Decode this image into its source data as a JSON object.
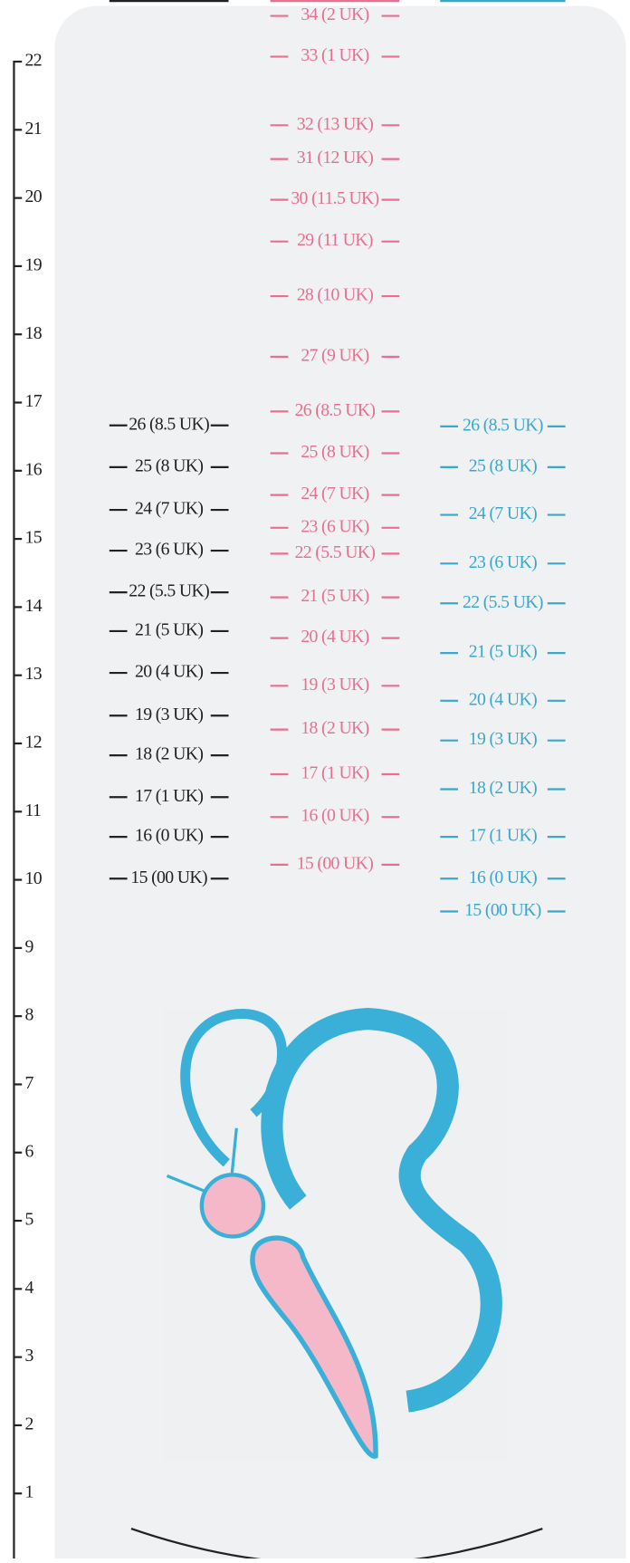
{
  "ruler": {
    "ticks": [
      "22",
      "21",
      "20",
      "19",
      "18",
      "17",
      "16",
      "15",
      "14",
      "13",
      "12",
      "11",
      "10",
      "9",
      "8",
      "7",
      "6",
      "5",
      "4",
      "3",
      "2",
      "1"
    ]
  },
  "columns": [
    {
      "labels": [
        "26 (8.5 UK)",
        "25 (8 UK)",
        "24 (7 UK)",
        "23 (6 UK)",
        "22 (5.5 UK)",
        "21 (5 UK)",
        "20 (4 UK)",
        "19 (3 UK)",
        "18 (2 UK)",
        "17 (1 UK)",
        "16 (0 UK)",
        "15 (00 UK)"
      ]
    },
    {
      "labels": [
        "34 (2 UK)",
        "33 (1 UK)",
        "32 (13 UK)",
        "31 (12 UK)",
        "30 (11.5 UK)",
        "29 (11 UK)",
        "28 (10 UK)",
        "27 (9 UK)",
        "26 (8.5 UK)",
        "25 (8 UK)",
        "24 (7 UK)",
        "23 (6 UK)",
        "22 (5.5 UK)",
        "21 (5 UK)",
        "20 (4 UK)",
        "19 (3 UK)",
        "18 (2 UK)",
        "17 (1 UK)",
        "16 (0 UK)",
        "15 (00 UK)"
      ]
    },
    {
      "labels": [
        "26 (8.5 UK)",
        "25 (8 UK)",
        "24 (7 UK)",
        "23 (6 UK)",
        "22 (5.5 UK)",
        "21 (5 UK)",
        "20 (4 UK)",
        "19 (3 UK)",
        "18 (2 UK)",
        "17 (1 UK)",
        "16 (0 UK)",
        "15 (00 UK)"
      ]
    }
  ]
}
